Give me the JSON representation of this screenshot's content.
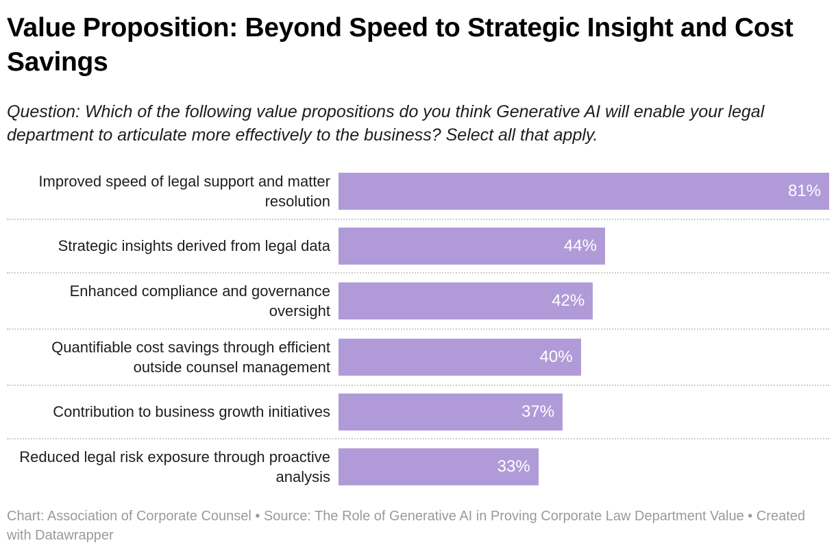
{
  "header": {
    "title": "Value Proposition: Beyond Speed to Strategic Insight and Cost Savings",
    "subtitle": "Question: Which of the following value propositions do you think Generative AI will enable your legal department to articulate more effectively to the business? Select all that apply."
  },
  "chart_data": {
    "type": "bar",
    "orientation": "horizontal",
    "title": "Value Proposition: Beyond Speed to Strategic Insight and Cost Savings",
    "subtitle": "Question: Which of the following value propositions do you think Generative AI will enable your legal department to articulate more effectively to the business? Select all that apply.",
    "categories": [
      "Improved speed of legal support and matter resolution",
      "Strategic insights derived from legal data",
      "Enhanced compliance and governance oversight",
      "Quantifiable cost savings through efficient outside counsel management",
      "Contribution to business growth initiatives",
      "Reduced legal risk exposure through proactive analysis"
    ],
    "values": [
      81,
      44,
      42,
      40,
      37,
      33
    ],
    "value_labels": [
      "81%",
      "44%",
      "42%",
      "40%",
      "37%",
      "33%"
    ],
    "value_suffix": "%",
    "xlim": [
      0,
      81
    ],
    "grid": false,
    "legend": false,
    "bar_color": "#b09bd8",
    "value_label_color": "#ffffff",
    "separator_color": "#cccccc"
  },
  "footer": {
    "text": "Chart: Association of Corporate Counsel • Source: The Role of Generative AI in Proving Corporate Law Department Value • Created with Datawrapper"
  }
}
